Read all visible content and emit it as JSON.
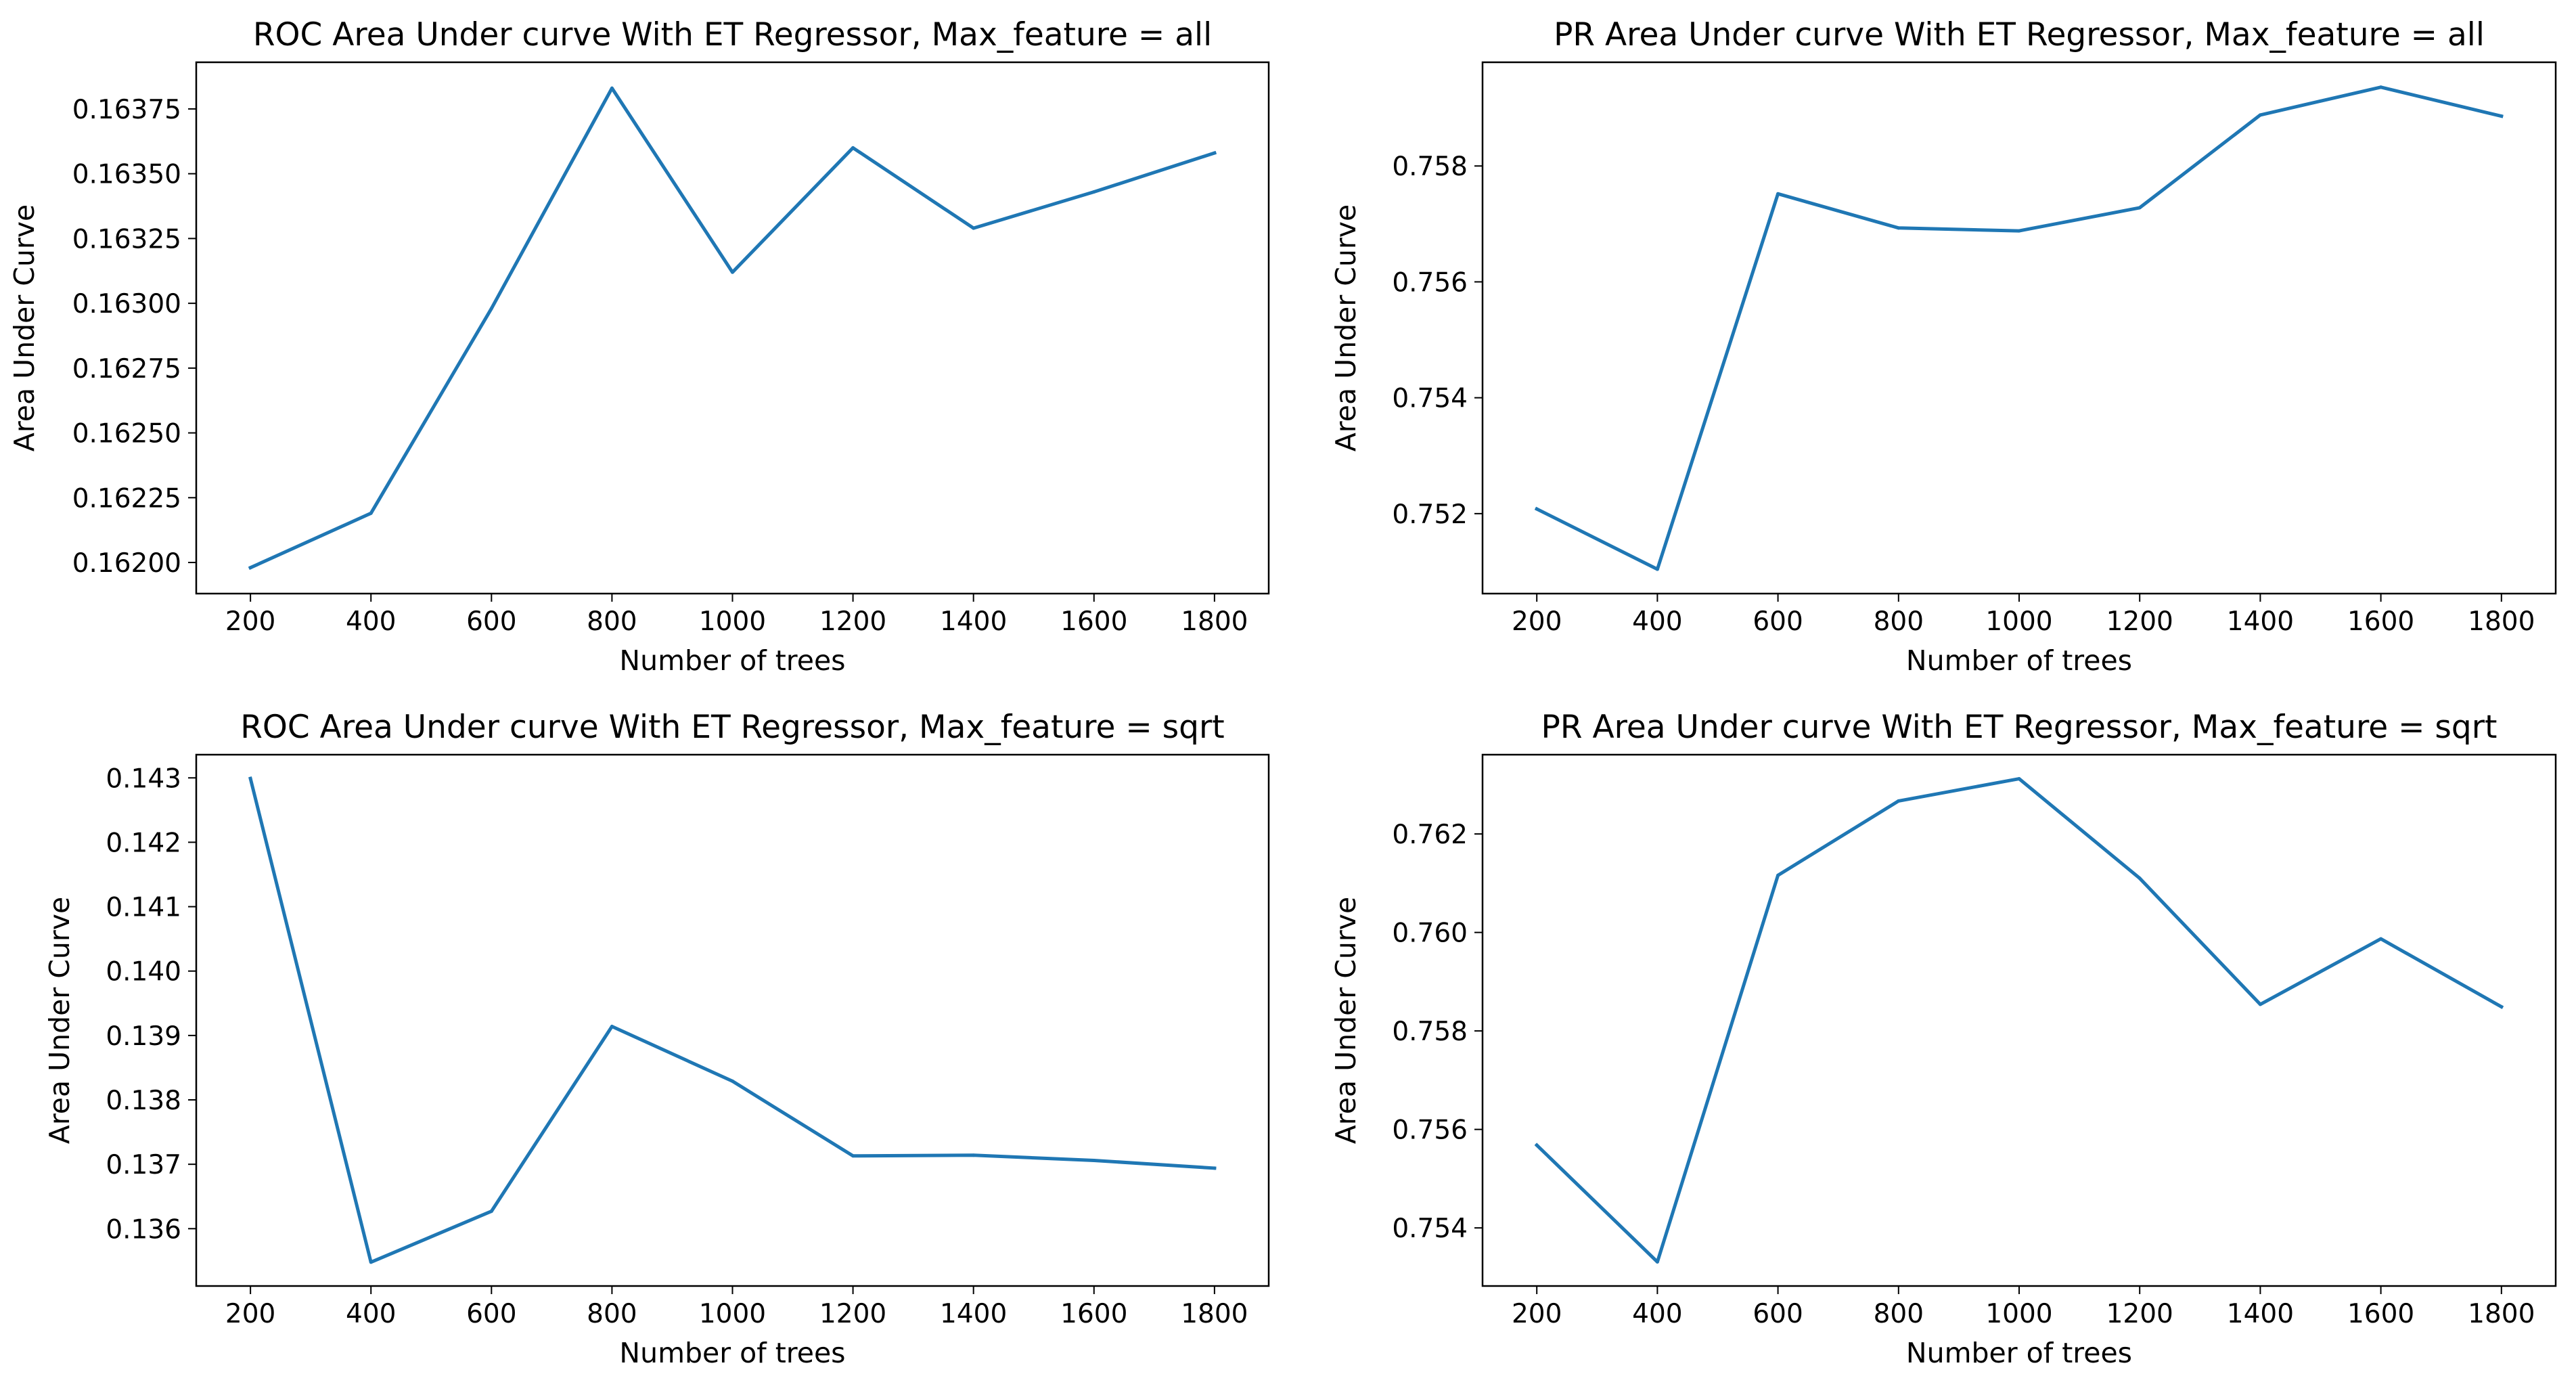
{
  "chart_data": [
    {
      "type": "line",
      "title": "ROC Area Under curve With ET Regressor, Max_feature = all",
      "xlabel": "Number of trees",
      "ylabel": "Area Under Curve",
      "x": [
        200,
        400,
        600,
        800,
        1000,
        1200,
        1400,
        1600,
        1800
      ],
      "xticks": [
        "200",
        "400",
        "600",
        "800",
        "1000",
        "1200",
        "1400",
        "1600",
        "1800"
      ],
      "yticks": [
        "0.16200",
        "0.16225",
        "0.16250",
        "0.16275",
        "0.16300",
        "0.16325",
        "0.16350",
        "0.16375"
      ],
      "series": [
        {
          "values": [
            0.16198,
            0.16219,
            0.16298,
            0.16383,
            0.16312,
            0.1636,
            0.16329,
            0.16343,
            0.16358
          ]
        }
      ],
      "xlim": [
        110,
        1890
      ],
      "ylim": [
        0.16188,
        0.16393
      ],
      "grid": false,
      "color": "#1f77b4"
    },
    {
      "type": "line",
      "title": "PR Area Under curve With ET Regressor, Max_feature = all",
      "xlabel": "Number of trees",
      "ylabel": "Area Under Curve",
      "x": [
        200,
        400,
        600,
        800,
        1000,
        1200,
        1400,
        1600,
        1800
      ],
      "xticks": [
        "200",
        "400",
        "600",
        "800",
        "1000",
        "1200",
        "1400",
        "1600",
        "1800"
      ],
      "yticks": [
        "0.752",
        "0.754",
        "0.756",
        "0.758"
      ],
      "series": [
        {
          "values": [
            0.75208,
            0.75104,
            0.75752,
            0.75693,
            0.75688,
            0.75728,
            0.75888,
            0.75936,
            0.75886
          ]
        }
      ],
      "xlim": [
        110,
        1890
      ],
      "ylim": [
        0.75062,
        0.75979
      ],
      "grid": false,
      "color": "#1f77b4"
    },
    {
      "type": "line",
      "title": "ROC Area Under curve With ET Regressor, Max_feature = sqrt",
      "xlabel": "Number of trees",
      "ylabel": "Area Under Curve",
      "x": [
        200,
        400,
        600,
        800,
        1000,
        1200,
        1400,
        1600,
        1800
      ],
      "xticks": [
        "200",
        "400",
        "600",
        "800",
        "1000",
        "1200",
        "1400",
        "1600",
        "1800"
      ],
      "yticks": [
        "0.136",
        "0.137",
        "0.138",
        "0.139",
        "0.140",
        "0.141",
        "0.142",
        "0.143"
      ],
      "series": [
        {
          "values": [
            0.14299,
            0.13548,
            0.13627,
            0.13914,
            0.13829,
            0.13713,
            0.13714,
            0.13706,
            0.13694
          ]
        }
      ],
      "xlim": [
        110,
        1890
      ],
      "ylim": [
        0.13511,
        0.14336
      ],
      "grid": false,
      "color": "#1f77b4"
    },
    {
      "type": "line",
      "title": "PR Area Under curve With ET Regressor, Max_feature = sqrt",
      "xlabel": "Number of trees",
      "ylabel": "Area Under Curve",
      "x": [
        200,
        400,
        600,
        800,
        1000,
        1200,
        1400,
        1600,
        1800
      ],
      "xticks": [
        "200",
        "400",
        "600",
        "800",
        "1000",
        "1200",
        "1400",
        "1600",
        "1800"
      ],
      "yticks": [
        "0.754",
        "0.756",
        "0.758",
        "0.760",
        "0.762"
      ],
      "series": [
        {
          "values": [
            0.75568,
            0.75331,
            0.76116,
            0.76267,
            0.76312,
            0.7611,
            0.75854,
            0.75987,
            0.75849
          ]
        }
      ],
      "xlim": [
        110,
        1890
      ],
      "ylim": [
        0.75282,
        0.76361
      ],
      "grid": false,
      "color": "#1f77b4"
    }
  ]
}
